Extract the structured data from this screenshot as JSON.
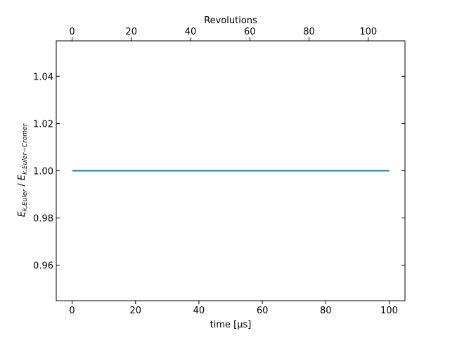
{
  "chart_data": {
    "type": "line",
    "title": "",
    "xlabel": "time [μs]",
    "ylabel": "E_k,Euler / E_k,Euler−Cromer",
    "ylabel_parts": {
      "num_base": "E",
      "num_sub": "k,Euler",
      "sep": " / ",
      "den_base": "E",
      "den_sub": "k,Euler−Cromer"
    },
    "secondary_xlabel": "Revolutions",
    "xlim": [
      -5,
      105
    ],
    "ylim": [
      0.945,
      1.055
    ],
    "xticks": [
      0,
      20,
      40,
      60,
      80,
      100
    ],
    "yticks": [
      0.96,
      0.98,
      1.0,
      1.02,
      1.04
    ],
    "ytick_labels": [
      "0.96",
      "0.98",
      "1.00",
      "1.02",
      "1.04"
    ],
    "secondary_xticks": [
      0,
      20,
      40,
      60,
      80,
      100
    ],
    "secondary_xlim": [
      -5.35,
      112.4
    ],
    "grid": false,
    "legend": "none",
    "series": [
      {
        "color": "#1f77b4",
        "x": [
          0,
          100
        ],
        "y": [
          1.0,
          1.0
        ]
      }
    ]
  }
}
